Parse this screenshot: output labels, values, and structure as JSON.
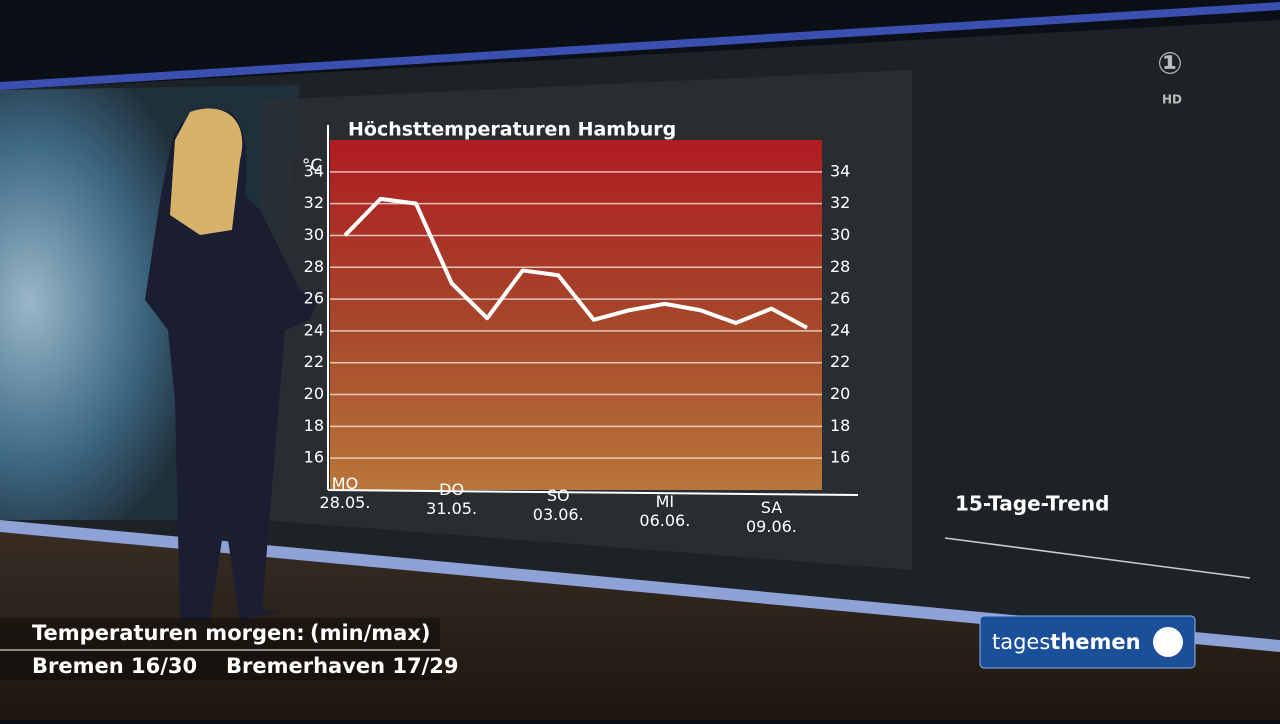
{
  "chart_data": {
    "type": "line",
    "title": "Höchsttemperaturen Hamburg",
    "y_label": "°C",
    "categories": [
      "MO\n28.05.",
      null,
      null,
      "DO\n31.05.",
      null,
      null,
      "SO\n03.06.",
      null,
      null,
      "MI\n06.06.",
      null,
      null,
      "SA\n09.06.",
      null
    ],
    "series": [
      {
        "color": "#ffffff",
        "values": [
          30,
          32.3,
          32,
          27,
          24.8,
          27.8,
          27.5,
          24.7,
          25.3,
          25.7,
          25.3,
          24.5,
          25.4,
          24.2
        ]
      }
    ],
    "ylim": [
      14,
      36
    ],
    "yticks": [
      16,
      18,
      20,
      22,
      24,
      26,
      28,
      30,
      32,
      34
    ],
    "grid": true
  },
  "trend_label": "15-Tage-Trend",
  "hd": "HD",
  "logo": [
    "tages",
    "themen"
  ],
  "ticker": {
    "heading": "Temperaturen morgen:",
    "note": "(min/max)",
    "items": [
      "Bremen 16/30",
      "Bremerhaven 17/29"
    ]
  }
}
